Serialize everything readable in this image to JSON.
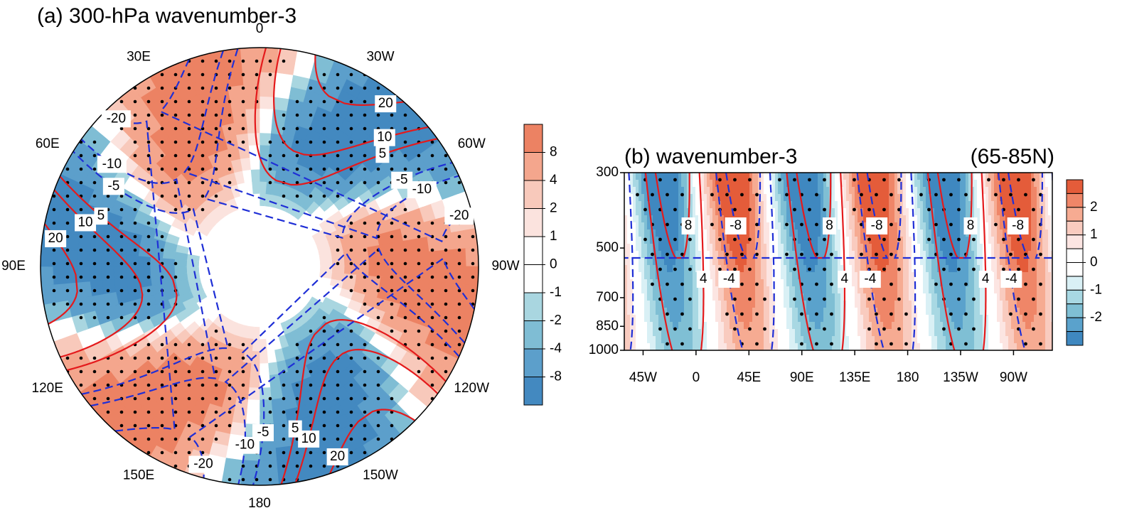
{
  "panel_a": {
    "title": "(a) 300-hPa wavenumber-3",
    "lon_labels": [
      "0",
      "30W",
      "60W",
      "90W",
      "120W",
      "150W",
      "180",
      "150E",
      "120E",
      "90E",
      "60E",
      "30E"
    ],
    "contour_levels": [
      20,
      10,
      5,
      -5,
      -10,
      -20
    ],
    "colorbar": {
      "ticks": [
        8,
        4,
        2,
        1,
        0,
        -1,
        -2,
        -4,
        -8
      ],
      "colors": [
        "#ec8263",
        "#f4a68d",
        "#f8c9bb",
        "#fbe3de",
        "#ffffff",
        "#ffffff",
        "#a9d6e0",
        "#7fbdd4",
        "#5c9fcb",
        "#4389c0"
      ]
    }
  },
  "panel_b": {
    "title": "(b) wavenumber-3",
    "subtitle": "(65-85N)",
    "xlim": [
      -61,
      303
    ],
    "xticks": [
      {
        "value": -45,
        "label": "45W"
      },
      0,
      {
        "value": 45,
        "label": "45E"
      },
      {
        "value": 90,
        "label": "90E"
      },
      {
        "value": 135,
        "label": "135E"
      },
      180,
      {
        "value": 225,
        "label": "135W"
      },
      {
        "value": 270,
        "label": "90W"
      }
    ],
    "ylim": [
      1000,
      300
    ],
    "yticks": [
      300,
      500,
      700,
      850,
      1000
    ],
    "ylog": true,
    "contour_levels": [
      8,
      4,
      -4,
      -8
    ],
    "colorbar": {
      "lim": [
        -3,
        3
      ],
      "ticks": [
        2,
        1,
        0,
        -1,
        -2
      ],
      "colors": [
        "#e45c3a",
        "#ef8668",
        "#f6ab92",
        "#f9cbbf",
        "#fce5e2",
        "#ffffff",
        "#ffffff",
        "#d9f0f5",
        "#a8d8e3",
        "#7fbfd4",
        "#5aa2cc",
        "#3f88c0"
      ]
    }
  }
}
